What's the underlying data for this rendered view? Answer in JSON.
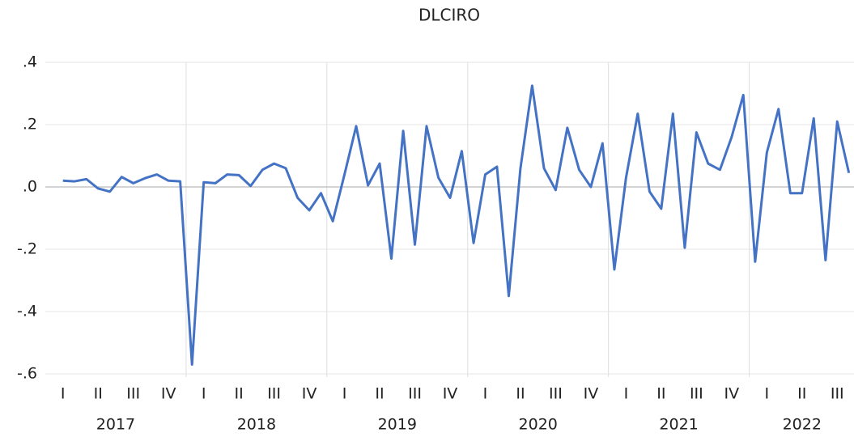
{
  "chart_data": {
    "type": "line",
    "title": "DLCIRO",
    "x": [
      2017.125,
      2017.208,
      2017.292,
      2017.375,
      2017.458,
      2017.542,
      2017.625,
      2017.708,
      2017.792,
      2017.875,
      2017.958,
      2018.042,
      2018.125,
      2018.208,
      2018.292,
      2018.375,
      2018.458,
      2018.542,
      2018.625,
      2018.708,
      2018.792,
      2018.875,
      2018.958,
      2019.042,
      2019.125,
      2019.208,
      2019.292,
      2019.375,
      2019.458,
      2019.542,
      2019.625,
      2019.708,
      2019.792,
      2019.875,
      2019.958,
      2020.042,
      2020.125,
      2020.208,
      2020.292,
      2020.375,
      2020.458,
      2020.542,
      2020.625,
      2020.708,
      2020.792,
      2020.875,
      2020.958,
      2021.042,
      2021.125,
      2021.208,
      2021.292,
      2021.375,
      2021.458,
      2021.542,
      2021.625,
      2021.708,
      2021.792,
      2021.875,
      2021.958,
      2022.042,
      2022.125,
      2022.208,
      2022.292,
      2022.375,
      2022.458,
      2022.542,
      2022.625,
      2022.708
    ],
    "series": [
      {
        "name": "DLCIRO",
        "color": "#4472c4",
        "values": [
          0.02,
          0.018,
          0.025,
          -0.005,
          -0.015,
          0.032,
          0.012,
          0.028,
          0.04,
          0.02,
          0.018,
          -0.57,
          0.015,
          0.012,
          0.04,
          0.038,
          0.003,
          0.055,
          0.075,
          0.06,
          -0.035,
          -0.075,
          -0.02,
          -0.11,
          0.04,
          0.195,
          0.005,
          0.075,
          -0.23,
          0.18,
          -0.185,
          0.195,
          0.03,
          -0.035,
          0.115,
          -0.18,
          0.04,
          0.065,
          -0.35,
          0.06,
          0.325,
          0.06,
          -0.01,
          0.19,
          0.055,
          0.0,
          0.14,
          -0.265,
          0.03,
          0.235,
          -0.015,
          -0.07,
          0.235,
          -0.195,
          0.175,
          0.075,
          0.055,
          0.16,
          0.295,
          -0.24,
          0.11,
          0.25,
          -0.02,
          -0.02,
          0.22,
          -0.235,
          0.21,
          0.045
        ]
      }
    ],
    "xlim": [
      2017,
      2022.75
    ],
    "ylim": [
      -0.6,
      0.4
    ],
    "yticks": [
      {
        "value": 0.4,
        "label": ".4"
      },
      {
        "value": 0.2,
        "label": ".2"
      },
      {
        "value": 0,
        "label": ".0"
      },
      {
        "value": -0.2,
        "label": "-.2"
      },
      {
        "value": -0.4,
        "label": "-.4"
      },
      {
        "value": -0.6,
        "label": "-.6"
      }
    ],
    "xticks": [
      {
        "value": 2017.125,
        "label": "I"
      },
      {
        "value": 2017.375,
        "label": "II"
      },
      {
        "value": 2017.625,
        "label": "III"
      },
      {
        "value": 2017.875,
        "label": "IV"
      },
      {
        "value": 2018.125,
        "label": "I"
      },
      {
        "value": 2018.375,
        "label": "II"
      },
      {
        "value": 2018.625,
        "label": "III"
      },
      {
        "value": 2018.875,
        "label": "IV"
      },
      {
        "value": 2019.125,
        "label": "I"
      },
      {
        "value": 2019.375,
        "label": "II"
      },
      {
        "value": 2019.625,
        "label": "III"
      },
      {
        "value": 2019.875,
        "label": "IV"
      },
      {
        "value": 2020.125,
        "label": "I"
      },
      {
        "value": 2020.375,
        "label": "II"
      },
      {
        "value": 2020.625,
        "label": "III"
      },
      {
        "value": 2020.875,
        "label": "IV"
      },
      {
        "value": 2021.125,
        "label": "I"
      },
      {
        "value": 2021.375,
        "label": "II"
      },
      {
        "value": 2021.625,
        "label": "III"
      },
      {
        "value": 2021.875,
        "label": "IV"
      },
      {
        "value": 2022.125,
        "label": "I"
      },
      {
        "value": 2022.375,
        "label": "II"
      },
      {
        "value": 2022.625,
        "label": "III"
      }
    ],
    "year_ticks": [
      {
        "value": 2017.5,
        "label": "2017"
      },
      {
        "value": 2018.5,
        "label": "2018"
      },
      {
        "value": 2019.5,
        "label": "2019"
      },
      {
        "value": 2020.5,
        "label": "2020"
      },
      {
        "value": 2021.5,
        "label": "2021"
      },
      {
        "value": 2022.375,
        "label": "2022"
      }
    ],
    "xgrid": [
      2018,
      2019,
      2020,
      2021,
      2022
    ],
    "grid": true
  }
}
